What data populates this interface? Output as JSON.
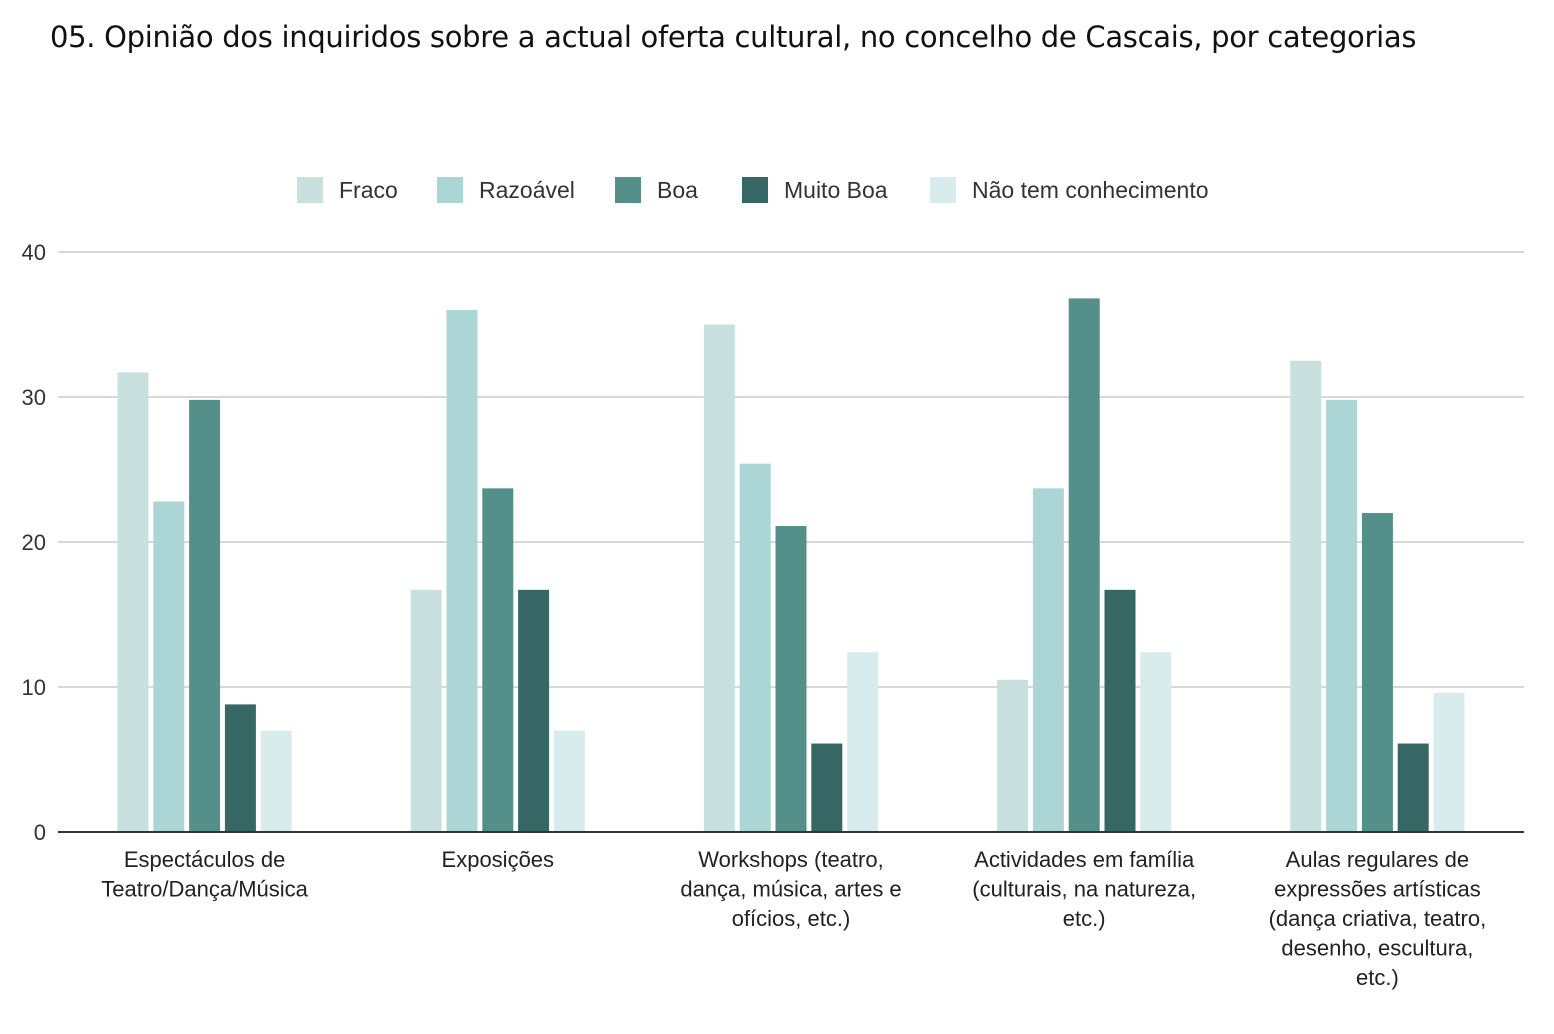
{
  "chart_data": {
    "type": "bar",
    "title": "05. Opinião dos inquiridos sobre a actual oferta cultural, no concelho de Cascais, por categorias",
    "categories": [
      [
        "Espectáculos de",
        "Teatro/Dança/Música"
      ],
      [
        "Exposições"
      ],
      [
        "Workshops (teatro,",
        "dança, música, artes e",
        "ofícios, etc.)"
      ],
      [
        "Actividades em família",
        "(culturais, na natureza,",
        "etc.)"
      ],
      [
        "Aulas regulares de",
        "expressões artísticas",
        "(dança criativa, teatro,",
        "desenho, escultura,",
        "etc.)"
      ]
    ],
    "series": [
      {
        "name": "Fraco",
        "color": "#c8e1de",
        "values": [
          31.7,
          16.7,
          35,
          10.5,
          32.5
        ]
      },
      {
        "name": "Razoável",
        "color": "#acd6d6",
        "values": [
          22.8,
          36,
          25.4,
          23.7,
          29.8
        ]
      },
      {
        "name": "Boa",
        "color": "#548f89",
        "values": [
          29.8,
          23.7,
          21.1,
          36.8,
          22
        ]
      },
      {
        "name": "Muito Boa",
        "color": "#376764",
        "values": [
          8.8,
          16.7,
          6.1,
          16.7,
          6.1
        ]
      },
      {
        "name": "Não tem conhecimento",
        "color": "#d8ecee",
        "values": [
          7,
          7,
          12.4,
          12.4,
          9.6
        ]
      }
    ],
    "ylim": [
      0,
      40
    ],
    "yticks": [
      0,
      10,
      20,
      30,
      40
    ],
    "grid": true,
    "legend": "top-center",
    "xlabel": "",
    "ylabel": ""
  }
}
